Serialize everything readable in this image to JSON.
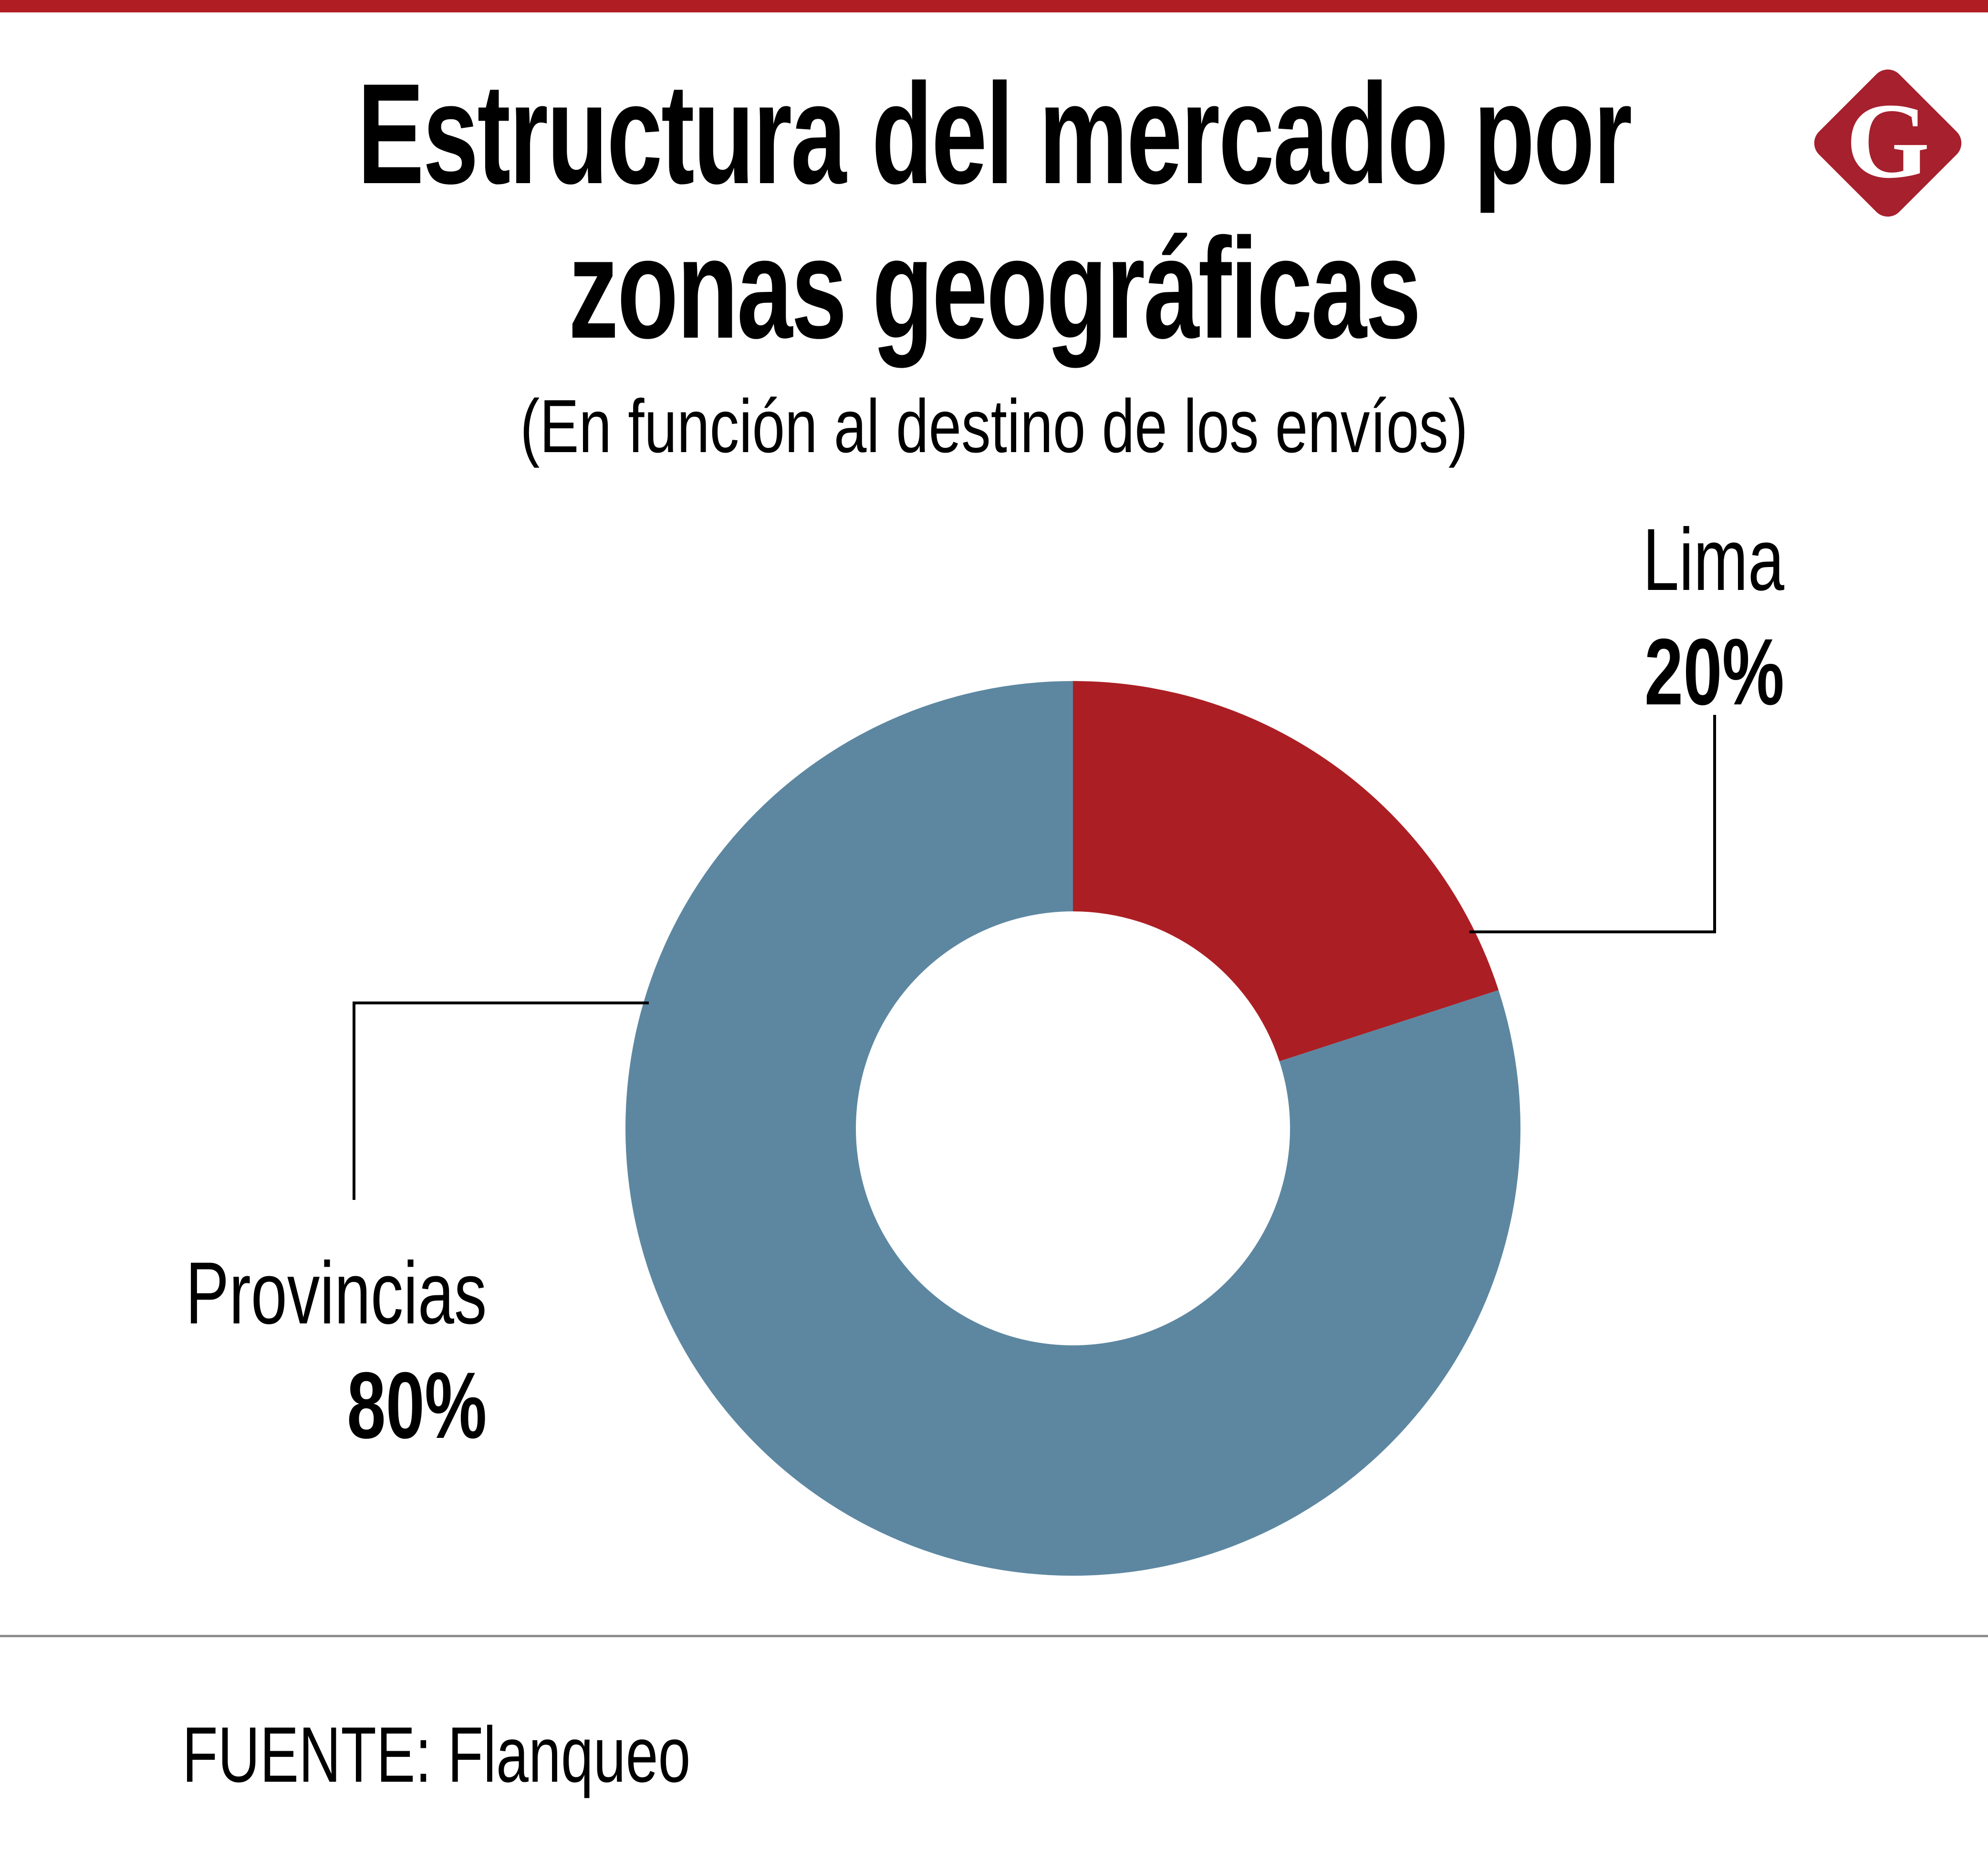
{
  "header": {
    "title_line1": "Estructura del mercado por",
    "title_line2": "zonas geográficas",
    "subtitle": "(En función al destino de los envíos)"
  },
  "brand": {
    "logo_letter": "G",
    "logo_color": "#A6202E",
    "topbar_color": "#B01E23"
  },
  "footer": {
    "source": "FUENTE: Flanqueo"
  },
  "chart_data": {
    "type": "pie",
    "subtype": "donut",
    "title": "Estructura del mercado por zonas geográficas",
    "subtitle": "(En función al destino de los envíos)",
    "start_angle_deg": 0,
    "direction": "clockwise",
    "inner_radius_ratio": 0.485,
    "legend_position": "callouts",
    "slices": [
      {
        "label": "Lima",
        "value": 20,
        "value_label": "20%",
        "color": "#AB1F24"
      },
      {
        "label": "Provincias",
        "value": 80,
        "value_label": "80%",
        "color": "#5D87A1"
      }
    ]
  }
}
